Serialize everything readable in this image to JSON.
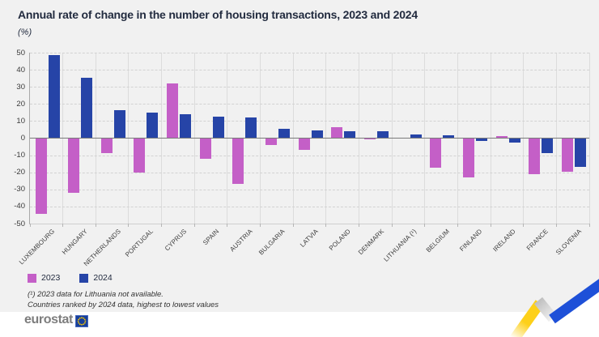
{
  "title": "Annual rate of change in the number of housing transactions, 2023 and 2024",
  "subtitle": "(%)",
  "legend": {
    "items": [
      {
        "label": "2023",
        "color": "#c45fc7"
      },
      {
        "label": "2024",
        "color": "#2644a7"
      }
    ]
  },
  "footnotes": [
    "(¹) 2023 data for Lithuania not available.",
    "Countries ranked by 2024 data, highest to lowest values"
  ],
  "footer": {
    "brand": "eurostat"
  },
  "colors": {
    "background": "#f1f1f1",
    "grid": "#d2d2d2",
    "zero_line": "#7a7a7a",
    "series_2023": "#c45fc7",
    "series_2024": "#2644a7",
    "brand_gray": "#7d7d7d",
    "zigzag_yellow": "#fdd019",
    "zigzag_blue": "#1e50d8",
    "eu_flag_blue": "#173f9b",
    "eu_flag_stars": "#ffcc00"
  },
  "chart_data": {
    "type": "bar",
    "title": "Annual rate of change in the number of housing transactions, 2023 and 2024",
    "ylabel": "(%)",
    "categories": [
      "LUXEMBOURG",
      "HUNGARY",
      "NETHERLANDS",
      "PORTUGAL",
      "CYPRUS",
      "SPAIN",
      "AUSTRIA",
      "BULGARIA",
      "LATVIA",
      "POLAND",
      "DENMARK",
      "LITHUANIA (¹)",
      "BELGIUM",
      "FINLAND",
      "IRELAND",
      "FRANCE",
      "SLOVENIA"
    ],
    "series": [
      {
        "name": "2023",
        "color": "#c45fc7",
        "values": [
          -44.5,
          -32,
          -9,
          -20,
          32,
          -12,
          -27,
          -4,
          -7,
          6.5,
          -0.4,
          null,
          -17.5,
          -23,
          1,
          -21,
          -19.5
        ]
      },
      {
        "name": "2024",
        "color": "#2644a7",
        "values": [
          48.5,
          35.5,
          16.5,
          15,
          14,
          12.5,
          12,
          5.5,
          4.3,
          3.8,
          3.8,
          2.3,
          1.5,
          -1.8,
          -2.8,
          -8.8,
          -17
        ]
      }
    ],
    "ylim": [
      -50,
      50
    ],
    "yticks": [
      50,
      40,
      30,
      20,
      10,
      0,
      -10,
      -20,
      -30,
      -40,
      -50
    ],
    "grid": true,
    "legend_position": "bottom-left"
  }
}
